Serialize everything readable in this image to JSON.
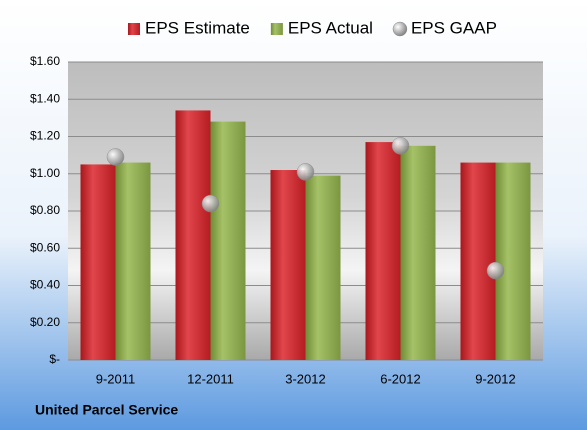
{
  "chart_data": {
    "type": "bar",
    "categories": [
      "9-2011",
      "12-2011",
      "3-2012",
      "6-2012",
      "9-2012"
    ],
    "series": [
      {
        "name": "EPS Estimate",
        "color": "#c8242b",
        "values": [
          1.05,
          1.34,
          1.02,
          1.17,
          1.06
        ]
      },
      {
        "name": "EPS Actual",
        "color": "#8ca94e",
        "values": [
          1.06,
          1.28,
          0.99,
          1.15,
          1.06
        ]
      },
      {
        "name": "EPS GAAP",
        "type": "scatter",
        "color": "#a6a6a6",
        "values": [
          1.09,
          0.84,
          1.01,
          1.15,
          0.48
        ]
      }
    ],
    "ylim": [
      0,
      1.6
    ],
    "yticks": [
      {
        "value": 0,
        "label": "$-"
      },
      {
        "value": 0.2,
        "label": "$0.20"
      },
      {
        "value": 0.4,
        "label": "$0.40"
      },
      {
        "value": 0.6,
        "label": "$0.60"
      },
      {
        "value": 0.8,
        "label": "$0.80"
      },
      {
        "value": 1.0,
        "label": "$1.00"
      },
      {
        "value": 1.2,
        "label": "$1.20"
      },
      {
        "value": 1.4,
        "label": "$1.40"
      },
      {
        "value": 1.6,
        "label": "$1.60"
      }
    ],
    "grid": true,
    "legend": "top",
    "footer": "United Parcel Service"
  }
}
